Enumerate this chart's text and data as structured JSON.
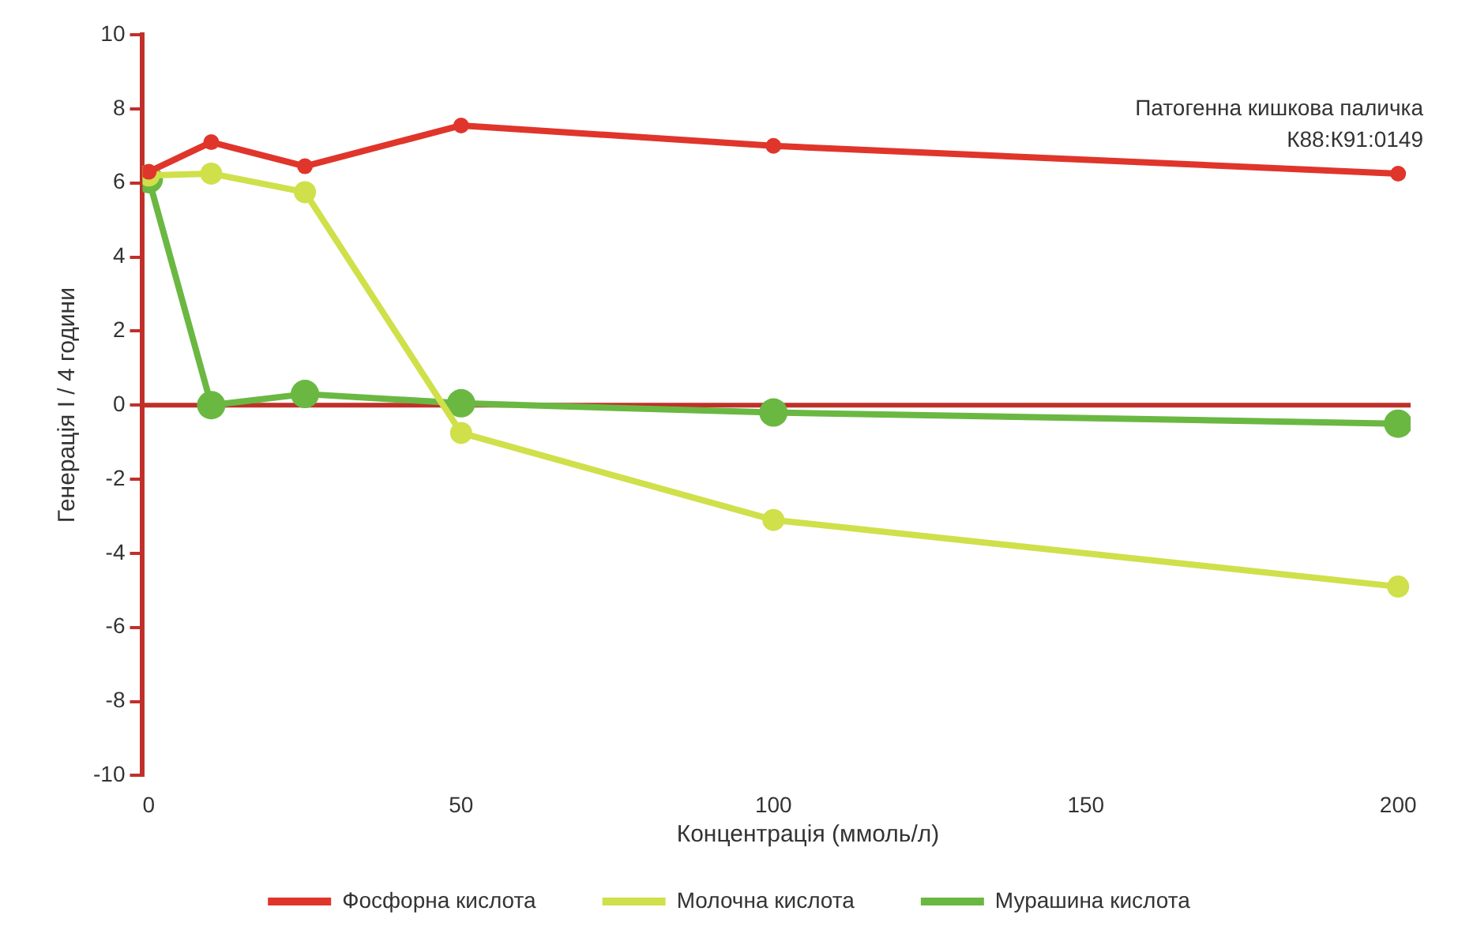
{
  "chart_data": {
    "type": "line",
    "xlabel": "Концентрація (ммоль/л)",
    "ylabel": "Генерація I / 4 години",
    "annotations": [
      "Патогенна кишкова паличка\nК88:К91:0149"
    ],
    "x": [
      0,
      10,
      25,
      50,
      100,
      200
    ],
    "series": [
      {
        "name": "Фосфорна кислота",
        "color": "#e0352b",
        "values": [
          6.3,
          7.1,
          6.45,
          7.55,
          7.0,
          6.25
        ]
      },
      {
        "name": "Молочна кислота",
        "color": "#cfe04a",
        "values": [
          6.2,
          6.25,
          5.75,
          -0.75,
          -3.1,
          -4.9
        ]
      },
      {
        "name": "Мурашина кислота",
        "color": "#6ab842",
        "values": [
          6.1,
          0,
          0.3,
          0.05,
          -0.2,
          -0.5
        ]
      }
    ],
    "xlim": [
      -1,
      202
    ],
    "ylim": [
      -10,
      10
    ],
    "xticks": [
      0,
      50,
      100,
      150,
      200
    ],
    "yticks": [
      -10,
      -8,
      -6,
      -4,
      -2,
      0,
      2,
      4,
      6,
      8,
      10
    ],
    "ref_lines": [
      {
        "axis": "y",
        "value": 0,
        "color": "#c0302a"
      }
    ],
    "grid": false,
    "legend": "bottom",
    "marker": "circle",
    "line_style": "solid"
  }
}
